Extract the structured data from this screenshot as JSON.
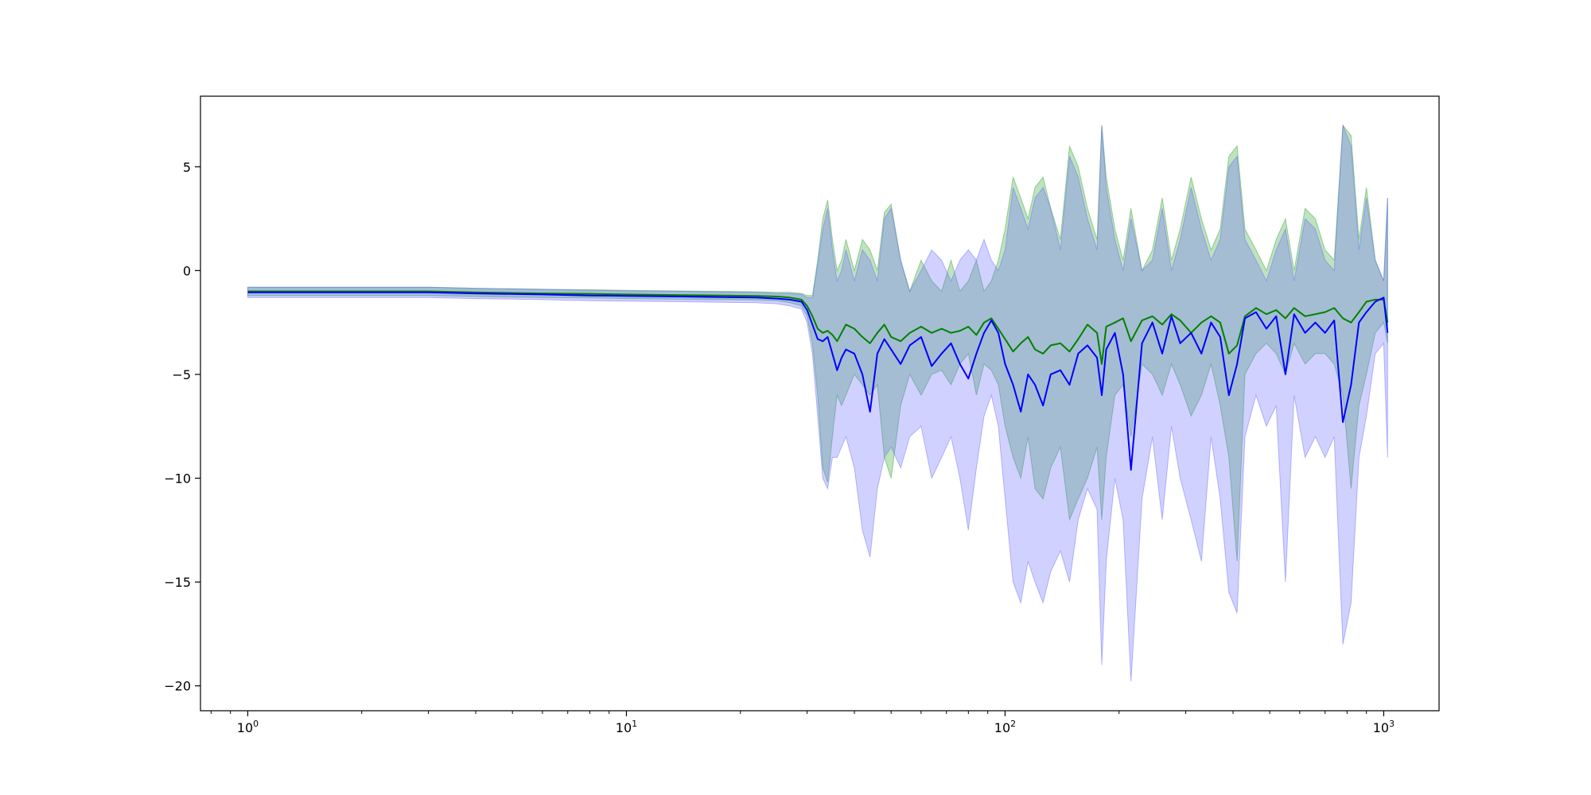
{
  "chart_data": {
    "type": "line",
    "title": "",
    "xlabel": "",
    "ylabel": "",
    "xscale": "log",
    "xlim": [
      0.75,
      1400
    ],
    "ylim": [
      -21.2,
      8.4
    ],
    "grid": false,
    "legend": "none",
    "x_ticks": [
      {
        "value": 1,
        "base": "10",
        "exp": "0"
      },
      {
        "value": 10,
        "base": "10",
        "exp": "1"
      },
      {
        "value": 100,
        "base": "10",
        "exp": "2"
      },
      {
        "value": 1000,
        "base": "10",
        "exp": "3"
      }
    ],
    "y_ticks": [
      {
        "value": 5,
        "label": "5"
      },
      {
        "value": 0,
        "label": "0"
      },
      {
        "value": -5,
        "label": "−5"
      },
      {
        "value": -10,
        "label": "−10"
      },
      {
        "value": -15,
        "label": "−15"
      },
      {
        "value": -20,
        "label": "−20"
      }
    ],
    "series": [
      {
        "color": "#008000",
        "band_color": "#2ca02c",
        "x": [
          1,
          2,
          3,
          4,
          6,
          8,
          10,
          14,
          18,
          22,
          25,
          27,
          29,
          30,
          31,
          32,
          33,
          34,
          35,
          36,
          37,
          38,
          40,
          42,
          44,
          46,
          48,
          50,
          53,
          56,
          60,
          64,
          68,
          72,
          76,
          80,
          84,
          88,
          92,
          96,
          100,
          105,
          110,
          115,
          120,
          126,
          132,
          140,
          148,
          156,
          165,
          175,
          180,
          185,
          195,
          205,
          215,
          230,
          245,
          260,
          275,
          290,
          310,
          330,
          350,
          370,
          390,
          410,
          430,
          460,
          490,
          520,
          550,
          580,
          620,
          660,
          700,
          740,
          780,
          820,
          860,
          900,
          950,
          1000,
          1024
        ],
        "y": [
          -1.0,
          -1.0,
          -1.0,
          -1.05,
          -1.1,
          -1.12,
          -1.15,
          -1.18,
          -1.2,
          -1.22,
          -1.25,
          -1.3,
          -1.4,
          -1.7,
          -2.2,
          -2.8,
          -3.0,
          -2.9,
          -3.1,
          -3.4,
          -3.0,
          -2.6,
          -2.8,
          -3.2,
          -3.5,
          -3.0,
          -2.6,
          -3.2,
          -3.4,
          -3.0,
          -2.7,
          -3.0,
          -2.8,
          -3.0,
          -2.9,
          -2.7,
          -3.1,
          -2.5,
          -2.3,
          -2.8,
          -3.3,
          -3.9,
          -3.5,
          -3.2,
          -3.8,
          -4.0,
          -3.6,
          -3.5,
          -3.9,
          -3.3,
          -2.6,
          -3.0,
          -4.5,
          -2.7,
          -2.5,
          -2.3,
          -3.4,
          -2.4,
          -2.2,
          -2.6,
          -2.1,
          -2.4,
          -3.0,
          -2.5,
          -2.2,
          -2.5,
          -4.0,
          -3.6,
          -2.2,
          -1.8,
          -2.1,
          -1.9,
          -2.3,
          -1.8,
          -2.2,
          -2.1,
          -2.0,
          -1.8,
          -2.3,
          -2.5,
          -2.0,
          -1.5,
          -1.4,
          -1.4,
          -2.5
        ],
        "lower": [
          -1.2,
          -1.2,
          -1.2,
          -1.25,
          -1.3,
          -1.32,
          -1.35,
          -1.38,
          -1.4,
          -1.42,
          -1.45,
          -1.55,
          -1.7,
          -2.2,
          -3.5,
          -6.0,
          -9.5,
          -10.2,
          -8.0,
          -6.0,
          -6.5,
          -6.0,
          -5.0,
          -5.5,
          -6.0,
          -5.5,
          -9.0,
          -10.0,
          -6.5,
          -5.0,
          -6.0,
          -5.0,
          -4.8,
          -5.5,
          -4.5,
          -4.0,
          -6.0,
          -4.5,
          -4.8,
          -5.5,
          -7.5,
          -9.0,
          -10.0,
          -8.0,
          -10.5,
          -11.0,
          -9.5,
          -8.5,
          -12.0,
          -11.0,
          -10.0,
          -8.5,
          -12.0,
          -9.0,
          -6.0,
          -5.5,
          -8.0,
          -4.5,
          -5.0,
          -6.0,
          -4.5,
          -5.5,
          -7.0,
          -6.0,
          -4.5,
          -6.5,
          -9.0,
          -14.0,
          -5.0,
          -4.0,
          -3.5,
          -4.0,
          -5.0,
          -3.5,
          -4.5,
          -4.0,
          -4.0,
          -4.5,
          -6.0,
          -10.5,
          -6.5,
          -5.0,
          -3.0,
          -2.5,
          -3.5
        ],
        "upper": [
          -0.8,
          -0.8,
          -0.8,
          -0.85,
          -0.9,
          -0.92,
          -0.95,
          -0.98,
          -1.0,
          -1.02,
          -1.05,
          -1.05,
          -1.1,
          -1.2,
          -1.2,
          0.5,
          2.5,
          3.4,
          1.5,
          0.0,
          0.5,
          1.5,
          0.0,
          1.5,
          1.0,
          0.0,
          2.8,
          3.2,
          0.5,
          -1.0,
          0.5,
          -0.5,
          -1.0,
          0.5,
          -1.0,
          -0.5,
          0.5,
          -1.0,
          -0.5,
          0.5,
          2.0,
          4.5,
          3.5,
          2.5,
          4.0,
          4.5,
          3.0,
          1.5,
          6.0,
          5.0,
          3.0,
          1.5,
          7.0,
          4.5,
          2.0,
          0.5,
          3.0,
          0.0,
          1.0,
          3.5,
          0.5,
          2.0,
          4.5,
          2.5,
          1.0,
          2.0,
          5.5,
          6.0,
          2.0,
          1.0,
          0.0,
          1.5,
          2.5,
          0.0,
          3.0,
          2.5,
          1.0,
          0.5,
          7.0,
          6.5,
          1.5,
          4.0,
          0.5,
          -0.5,
          3.5
        ]
      },
      {
        "color": "#0000ff",
        "band_color": "#6666ff",
        "x": [
          1,
          2,
          3,
          4,
          6,
          8,
          10,
          14,
          18,
          22,
          25,
          27,
          29,
          30,
          31,
          32,
          33,
          34,
          35,
          36,
          37,
          38,
          40,
          42,
          44,
          46,
          48,
          50,
          53,
          56,
          60,
          64,
          68,
          72,
          76,
          80,
          84,
          88,
          92,
          96,
          100,
          105,
          110,
          115,
          120,
          126,
          132,
          140,
          148,
          156,
          165,
          175,
          180,
          185,
          195,
          205,
          215,
          230,
          245,
          260,
          275,
          290,
          310,
          330,
          350,
          370,
          390,
          410,
          430,
          460,
          490,
          520,
          550,
          580,
          620,
          660,
          700,
          740,
          780,
          820,
          860,
          900,
          950,
          1000,
          1024
        ],
        "y": [
          -1.05,
          -1.05,
          -1.05,
          -1.1,
          -1.15,
          -1.2,
          -1.22,
          -1.25,
          -1.28,
          -1.3,
          -1.35,
          -1.4,
          -1.5,
          -1.9,
          -2.6,
          -3.3,
          -3.4,
          -3.2,
          -4.0,
          -4.8,
          -4.2,
          -3.8,
          -4.0,
          -5.0,
          -6.8,
          -4.0,
          -3.3,
          -3.8,
          -4.5,
          -3.6,
          -3.2,
          -4.6,
          -4.0,
          -3.5,
          -4.5,
          -5.2,
          -4.0,
          -3.0,
          -2.4,
          -3.0,
          -4.5,
          -5.5,
          -6.8,
          -5.0,
          -5.5,
          -6.5,
          -5.0,
          -4.8,
          -5.5,
          -4.0,
          -3.6,
          -4.2,
          -6.0,
          -3.8,
          -3.0,
          -5.0,
          -9.6,
          -3.5,
          -2.5,
          -4.0,
          -2.2,
          -3.5,
          -3.0,
          -4.0,
          -2.5,
          -3.2,
          -6.0,
          -4.5,
          -2.3,
          -2.0,
          -2.8,
          -2.2,
          -5.0,
          -2.1,
          -3.0,
          -2.5,
          -3.0,
          -2.4,
          -7.3,
          -5.5,
          -2.5,
          -2.0,
          -1.5,
          -1.3,
          -3.0
        ],
        "lower": [
          -1.3,
          -1.3,
          -1.3,
          -1.35,
          -1.4,
          -1.45,
          -1.47,
          -1.5,
          -1.53,
          -1.55,
          -1.6,
          -1.7,
          -1.85,
          -2.5,
          -4.0,
          -7.0,
          -10.0,
          -10.5,
          -9.0,
          -9.0,
          -8.5,
          -8.0,
          -9.5,
          -12.5,
          -13.8,
          -10.5,
          -9.0,
          -8.5,
          -9.5,
          -8.0,
          -7.5,
          -10.0,
          -9.0,
          -8.0,
          -10.0,
          -12.5,
          -9.5,
          -7.0,
          -6.0,
          -7.5,
          -11.0,
          -15.0,
          -16.0,
          -14.0,
          -15.0,
          -16.0,
          -14.5,
          -13.5,
          -15.0,
          -12.0,
          -10.5,
          -11.5,
          -19.0,
          -14.0,
          -10.0,
          -12.0,
          -19.8,
          -11.0,
          -8.0,
          -12.0,
          -7.5,
          -10.0,
          -12.0,
          -14.0,
          -8.0,
          -11.0,
          -15.5,
          -16.5,
          -8.0,
          -6.0,
          -7.5,
          -6.5,
          -15.0,
          -6.0,
          -9.0,
          -8.0,
          -9.0,
          -8.0,
          -18.0,
          -16.0,
          -9.0,
          -7.0,
          -4.0,
          -3.5,
          -9.0
        ],
        "upper": [
          -0.8,
          -0.8,
          -0.8,
          -0.85,
          -0.9,
          -0.95,
          -0.97,
          -1.0,
          -1.03,
          -1.05,
          -1.1,
          -1.1,
          -1.15,
          -1.3,
          -1.3,
          0.3,
          2.0,
          3.0,
          1.0,
          -0.5,
          0.0,
          1.0,
          -0.5,
          1.0,
          0.5,
          -0.5,
          2.5,
          3.0,
          0.5,
          -1.0,
          0.0,
          1.0,
          0.5,
          -0.5,
          0.5,
          1.0,
          0.5,
          1.5,
          0.5,
          0.0,
          1.0,
          4.0,
          3.0,
          2.0,
          3.5,
          4.0,
          3.0,
          1.0,
          5.5,
          4.5,
          2.5,
          1.0,
          7.0,
          4.0,
          1.5,
          0.0,
          2.5,
          0.0,
          0.5,
          3.0,
          0.0,
          1.5,
          4.0,
          2.0,
          0.5,
          1.5,
          5.0,
          5.5,
          1.5,
          0.5,
          -0.5,
          1.0,
          2.0,
          -0.5,
          2.5,
          2.0,
          0.5,
          0.0,
          7.0,
          6.0,
          1.0,
          3.5,
          0.5,
          -0.5,
          3.5
        ]
      }
    ]
  }
}
